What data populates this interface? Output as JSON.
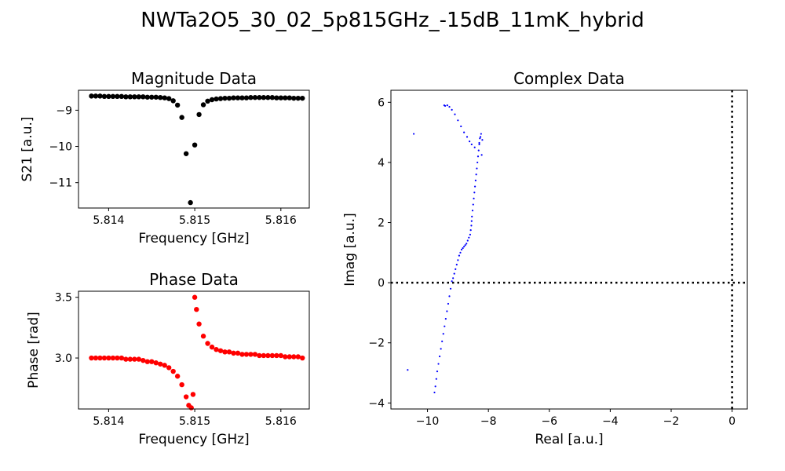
{
  "figure": {
    "suptitle": "NWTa2O5_30_02_5p815GHz_-15dB_11mK_hybrid"
  },
  "chart_data": [
    {
      "type": "scatter",
      "id": "magnitude",
      "title": "Magnitude Data",
      "xlabel": "Frequency [GHz]",
      "ylabel": "S21 [a.u.]",
      "xlim": [
        5.81365,
        5.81633
      ],
      "ylim": [
        -11.7,
        -8.45
      ],
      "xticks": [
        5.814,
        5.815,
        5.816
      ],
      "xtick_labels": [
        "5.814",
        "5.815",
        "5.816"
      ],
      "yticks": [
        -11,
        -10,
        -9
      ],
      "ytick_labels": [
        "−11",
        "−10",
        "−9"
      ],
      "color": "#000000",
      "series": [
        {
          "x": [
            5.8138,
            5.81385,
            5.8139,
            5.81395,
            5.814,
            5.81405,
            5.8141,
            5.81415,
            5.8142,
            5.81425,
            5.8143,
            5.81435,
            5.8144,
            5.81445,
            5.8145,
            5.81455,
            5.8146,
            5.81465,
            5.8147,
            5.81475,
            5.8148,
            5.81485,
            5.8149,
            5.81495,
            5.815,
            5.81505,
            5.8151,
            5.81515,
            5.8152,
            5.81525,
            5.8153,
            5.81535,
            5.8154,
            5.81545,
            5.8155,
            5.81555,
            5.8156,
            5.81565,
            5.8157,
            5.81575,
            5.8158,
            5.81585,
            5.8159,
            5.81595,
            5.816,
            5.81605,
            5.8161,
            5.81615,
            5.8162,
            5.81625
          ],
          "y": [
            -8.61,
            -8.61,
            -8.61,
            -8.62,
            -8.62,
            -8.62,
            -8.62,
            -8.62,
            -8.63,
            -8.63,
            -8.63,
            -8.63,
            -8.63,
            -8.64,
            -8.64,
            -8.64,
            -8.65,
            -8.66,
            -8.68,
            -8.74,
            -8.86,
            -9.2,
            -10.2,
            -11.55,
            -9.96,
            -9.12,
            -8.85,
            -8.75,
            -8.71,
            -8.69,
            -8.68,
            -8.67,
            -8.67,
            -8.66,
            -8.66,
            -8.66,
            -8.66,
            -8.65,
            -8.65,
            -8.65,
            -8.65,
            -8.65,
            -8.65,
            -8.66,
            -8.66,
            -8.66,
            -8.66,
            -8.67,
            -8.67,
            -8.67
          ]
        }
      ]
    },
    {
      "type": "scatter",
      "id": "phase",
      "title": "Phase Data",
      "xlabel": "Frequency [GHz]",
      "ylabel": "Phase [rad]",
      "xlim": [
        5.81365,
        5.81633
      ],
      "ylim": [
        2.58,
        3.55
      ],
      "xticks": [
        5.814,
        5.815,
        5.816
      ],
      "xtick_labels": [
        "5.814",
        "5.815",
        "5.816"
      ],
      "yticks": [
        3.0,
        3.5
      ],
      "ytick_labels": [
        "3.0",
        "3.5"
      ],
      "color": "#ff0000",
      "series": [
        {
          "x": [
            5.8138,
            5.81385,
            5.8139,
            5.81395,
            5.814,
            5.81405,
            5.8141,
            5.81415,
            5.8142,
            5.81425,
            5.8143,
            5.81435,
            5.8144,
            5.81445,
            5.8145,
            5.81455,
            5.8146,
            5.81465,
            5.8147,
            5.81475,
            5.8148,
            5.81485,
            5.8149,
            5.81493,
            5.81496,
            5.81498,
            5.815,
            5.81502,
            5.81505,
            5.8151,
            5.81515,
            5.8152,
            5.81525,
            5.8153,
            5.81535,
            5.8154,
            5.81545,
            5.8155,
            5.81555,
            5.8156,
            5.81565,
            5.8157,
            5.81575,
            5.8158,
            5.81585,
            5.8159,
            5.81595,
            5.816,
            5.81605,
            5.8161,
            5.81615,
            5.8162,
            5.81625
          ],
          "y": [
            3.0,
            3.0,
            3.0,
            3.0,
            3.0,
            3.0,
            3.0,
            3.0,
            2.99,
            2.99,
            2.99,
            2.99,
            2.98,
            2.97,
            2.97,
            2.96,
            2.95,
            2.94,
            2.92,
            2.89,
            2.85,
            2.78,
            2.68,
            2.61,
            2.59,
            2.7,
            3.5,
            3.4,
            3.28,
            3.18,
            3.12,
            3.09,
            3.07,
            3.06,
            3.05,
            3.05,
            3.04,
            3.04,
            3.03,
            3.03,
            3.03,
            3.03,
            3.02,
            3.02,
            3.02,
            3.02,
            3.02,
            3.02,
            3.01,
            3.01,
            3.01,
            3.01,
            3.0
          ]
        }
      ]
    },
    {
      "type": "scatter",
      "id": "complex",
      "title": "Complex Data",
      "xlabel": "Real [a.u.]",
      "ylabel": "Imag [a.u.]",
      "xlim": [
        -11.2,
        0.5
      ],
      "ylim": [
        -4.2,
        6.4
      ],
      "xticks": [
        -10,
        -8,
        -6,
        -4,
        -2,
        0
      ],
      "xtick_labels": [
        "−10",
        "−8",
        "−6",
        "−4",
        "−2",
        "0"
      ],
      "yticks": [
        -4,
        -2,
        0,
        2,
        4,
        6
      ],
      "ytick_labels": [
        "−4",
        "−2",
        "0",
        "2",
        "4",
        "6"
      ],
      "color": "#0000ff",
      "reference_lines": {
        "x": 0,
        "y": 0,
        "style": "dotted"
      },
      "series": [
        {
          "x": [
            -10.65,
            -10.45,
            -9.77,
            -9.74,
            -9.71,
            -9.68,
            -9.64,
            -9.6,
            -9.56,
            -9.52,
            -9.48,
            -9.44,
            -9.4,
            -9.36,
            -9.32,
            -9.28,
            -9.24,
            -9.2,
            -9.16,
            -9.12,
            -9.08,
            -9.04,
            -9.0,
            -8.96,
            -8.92,
            -8.88,
            -8.84,
            -8.8,
            -8.76,
            -8.72,
            -8.68,
            -8.64,
            -8.6,
            -8.58,
            -8.56,
            -8.55,
            -8.54,
            -8.52,
            -8.5,
            -8.48,
            -8.46,
            -8.44,
            -8.42,
            -8.4,
            -8.38,
            -8.36,
            -8.34,
            -8.32,
            -8.3,
            -8.28,
            -8.26,
            -8.24,
            -8.2,
            -8.22,
            -8.3,
            -8.45,
            -8.55,
            -8.62,
            -8.7,
            -8.8,
            -8.9,
            -9.0,
            -9.1,
            -9.2,
            -9.28,
            -9.35,
            -9.42,
            -9.45
          ],
          "y": [
            -2.9,
            4.95,
            -3.65,
            -3.45,
            -3.2,
            -2.95,
            -2.7,
            -2.45,
            -2.2,
            -1.95,
            -1.7,
            -1.45,
            -1.2,
            -0.95,
            -0.7,
            -0.45,
            -0.2,
            0.05,
            0.15,
            0.3,
            0.45,
            0.6,
            0.75,
            0.9,
            1.0,
            1.1,
            1.15,
            1.2,
            1.25,
            1.3,
            1.4,
            1.5,
            1.6,
            1.75,
            1.9,
            2.05,
            2.2,
            2.4,
            2.6,
            2.8,
            3.0,
            3.2,
            3.4,
            3.6,
            3.8,
            4.0,
            4.2,
            4.4,
            4.6,
            4.8,
            4.85,
            4.95,
            4.75,
            4.25,
            4.65,
            4.5,
            4.6,
            4.7,
            4.85,
            5.0,
            5.2,
            5.4,
            5.6,
            5.75,
            5.85,
            5.9,
            5.88,
            5.9
          ]
        }
      ]
    }
  ]
}
